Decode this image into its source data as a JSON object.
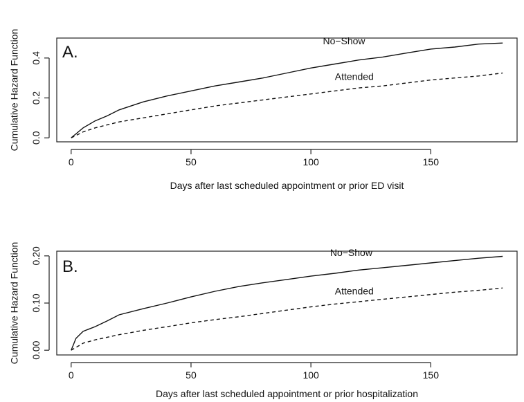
{
  "chart_data": [
    {
      "type": "line",
      "panel_label": "A.",
      "xlabel": "Days after last scheduled appointment or prior ED visit",
      "ylabel": "Cumulative Hazard Function",
      "xlim": [
        -6,
        186
      ],
      "ylim": [
        -0.02,
        0.5
      ],
      "xticks": [
        0,
        50,
        100,
        150
      ],
      "yticks": [
        0.0,
        0.2,
        0.4
      ],
      "ytick_labels": [
        "0.0",
        "0.2",
        "0.4"
      ],
      "grid": false,
      "legend": "inline labels",
      "series": [
        {
          "name": "No−Show",
          "line_style": "solid",
          "x": [
            0,
            2,
            5,
            10,
            15,
            20,
            30,
            40,
            50,
            60,
            70,
            80,
            90,
            100,
            110,
            120,
            130,
            140,
            150,
            160,
            170,
            180
          ],
          "y": [
            0.0,
            0.02,
            0.05,
            0.085,
            0.11,
            0.14,
            0.18,
            0.21,
            0.235,
            0.26,
            0.28,
            0.3,
            0.325,
            0.35,
            0.37,
            0.39,
            0.405,
            0.425,
            0.445,
            0.455,
            0.47,
            0.475
          ]
        },
        {
          "name": "Attended",
          "line_style": "dashed",
          "x": [
            0,
            5,
            10,
            20,
            30,
            40,
            50,
            60,
            70,
            80,
            90,
            100,
            110,
            120,
            130,
            140,
            150,
            160,
            170,
            180
          ],
          "y": [
            0.0,
            0.03,
            0.05,
            0.08,
            0.1,
            0.12,
            0.14,
            0.16,
            0.175,
            0.19,
            0.205,
            0.22,
            0.235,
            0.25,
            0.26,
            0.275,
            0.29,
            0.3,
            0.31,
            0.325
          ]
        }
      ]
    },
    {
      "type": "line",
      "panel_label": "B.",
      "xlabel": "Days after last scheduled appointment or prior hospitalization",
      "ylabel": "Cumulative Hazard Function",
      "xlim": [
        -6,
        186
      ],
      "ylim": [
        -0.01,
        0.21
      ],
      "xticks": [
        0,
        50,
        100,
        150
      ],
      "yticks": [
        0.0,
        0.1,
        0.2
      ],
      "ytick_labels": [
        "0.00",
        "0.10",
        "0.20"
      ],
      "grid": false,
      "legend": "inline labels",
      "series": [
        {
          "name": "No−Show",
          "line_style": "solid",
          "x": [
            0,
            2,
            5,
            10,
            15,
            20,
            30,
            40,
            50,
            60,
            70,
            80,
            90,
            100,
            110,
            120,
            130,
            140,
            150,
            160,
            170,
            180
          ],
          "y": [
            0.0,
            0.025,
            0.04,
            0.05,
            0.062,
            0.075,
            0.088,
            0.1,
            0.113,
            0.125,
            0.135,
            0.143,
            0.15,
            0.157,
            0.163,
            0.17,
            0.175,
            0.18,
            0.185,
            0.19,
            0.195,
            0.199
          ]
        },
        {
          "name": "Attended",
          "line_style": "dashed",
          "x": [
            0,
            5,
            10,
            20,
            30,
            40,
            50,
            60,
            70,
            80,
            90,
            100,
            110,
            120,
            130,
            140,
            150,
            160,
            170,
            180
          ],
          "y": [
            0.0,
            0.015,
            0.022,
            0.033,
            0.042,
            0.05,
            0.058,
            0.065,
            0.071,
            0.078,
            0.085,
            0.092,
            0.098,
            0.103,
            0.108,
            0.113,
            0.118,
            0.123,
            0.127,
            0.132
          ]
        }
      ]
    }
  ]
}
